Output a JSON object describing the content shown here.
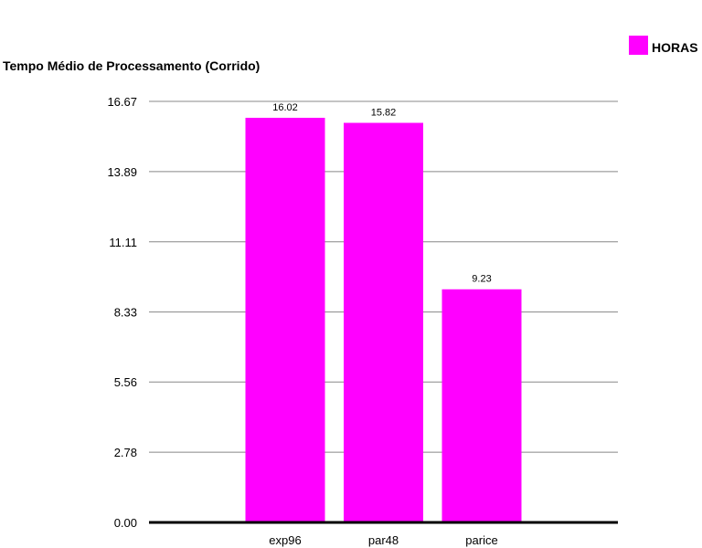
{
  "chart_data": {
    "type": "bar",
    "title": "Tempo Médio de Processamento (Corrido)",
    "xlabel": "",
    "ylabel": "",
    "categories": [
      "exp96",
      "par48",
      "parice"
    ],
    "series": [
      {
        "name": "HORAS",
        "values": [
          16.02,
          15.82,
          9.23
        ],
        "color": "#ff00ff"
      }
    ],
    "data_labels": [
      "16.02",
      "15.82",
      "9.23"
    ],
    "yticks": [
      "0.00",
      "2.78",
      "5.56",
      "8.33",
      "11.11",
      "13.89",
      "16.67"
    ],
    "ylim": [
      0,
      16.67
    ],
    "grid": true,
    "legend_position": "top-right"
  }
}
